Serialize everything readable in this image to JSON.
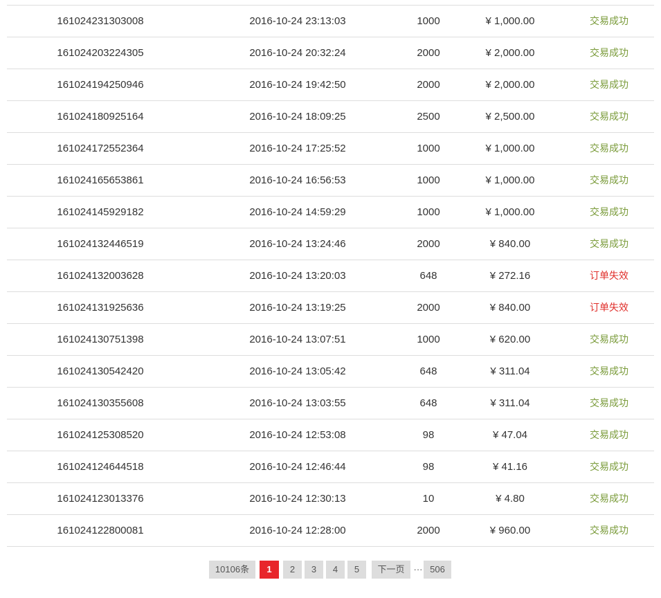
{
  "orders": [
    {
      "id": "161024231303008",
      "time": "2016-10-24 23:13:03",
      "qty": "1000",
      "amount": "¥ 1,000.00",
      "status": "交易成功",
      "status_type": "success"
    },
    {
      "id": "161024203224305",
      "time": "2016-10-24 20:32:24",
      "qty": "2000",
      "amount": "¥ 2,000.00",
      "status": "交易成功",
      "status_type": "success"
    },
    {
      "id": "161024194250946",
      "time": "2016-10-24 19:42:50",
      "qty": "2000",
      "amount": "¥ 2,000.00",
      "status": "交易成功",
      "status_type": "success"
    },
    {
      "id": "161024180925164",
      "time": "2016-10-24 18:09:25",
      "qty": "2500",
      "amount": "¥ 2,500.00",
      "status": "交易成功",
      "status_type": "success"
    },
    {
      "id": "161024172552364",
      "time": "2016-10-24 17:25:52",
      "qty": "1000",
      "amount": "¥ 1,000.00",
      "status": "交易成功",
      "status_type": "success"
    },
    {
      "id": "161024165653861",
      "time": "2016-10-24 16:56:53",
      "qty": "1000",
      "amount": "¥ 1,000.00",
      "status": "交易成功",
      "status_type": "success"
    },
    {
      "id": "161024145929182",
      "time": "2016-10-24 14:59:29",
      "qty": "1000",
      "amount": "¥ 1,000.00",
      "status": "交易成功",
      "status_type": "success"
    },
    {
      "id": "161024132446519",
      "time": "2016-10-24 13:24:46",
      "qty": "2000",
      "amount": "¥ 840.00",
      "status": "交易成功",
      "status_type": "success"
    },
    {
      "id": "161024132003628",
      "time": "2016-10-24 13:20:03",
      "qty": "648",
      "amount": "¥ 272.16",
      "status": "订单失效",
      "status_type": "failed"
    },
    {
      "id": "161024131925636",
      "time": "2016-10-24 13:19:25",
      "qty": "2000",
      "amount": "¥ 840.00",
      "status": "订单失效",
      "status_type": "failed"
    },
    {
      "id": "161024130751398",
      "time": "2016-10-24 13:07:51",
      "qty": "1000",
      "amount": "¥ 620.00",
      "status": "交易成功",
      "status_type": "success"
    },
    {
      "id": "161024130542420",
      "time": "2016-10-24 13:05:42",
      "qty": "648",
      "amount": "¥ 311.04",
      "status": "交易成功",
      "status_type": "success"
    },
    {
      "id": "161024130355608",
      "time": "2016-10-24 13:03:55",
      "qty": "648",
      "amount": "¥ 311.04",
      "status": "交易成功",
      "status_type": "success"
    },
    {
      "id": "161024125308520",
      "time": "2016-10-24 12:53:08",
      "qty": "98",
      "amount": "¥ 47.04",
      "status": "交易成功",
      "status_type": "success"
    },
    {
      "id": "161024124644518",
      "time": "2016-10-24 12:46:44",
      "qty": "98",
      "amount": "¥ 41.16",
      "status": "交易成功",
      "status_type": "success"
    },
    {
      "id": "161024123013376",
      "time": "2016-10-24 12:30:13",
      "qty": "10",
      "amount": "¥ 4.80",
      "status": "交易成功",
      "status_type": "success"
    },
    {
      "id": "161024122800081",
      "time": "2016-10-24 12:28:00",
      "qty": "2000",
      "amount": "¥ 960.00",
      "status": "交易成功",
      "status_type": "success"
    }
  ],
  "pagination": {
    "total": "10106条",
    "pages": [
      "1",
      "2",
      "3",
      "4",
      "5"
    ],
    "current": "1",
    "next": "下一页",
    "ellipsis": "···",
    "last": "506"
  },
  "colors": {
    "success": "#7a9b3a",
    "failed": "#e0302c",
    "current_page": "#e8262b",
    "page_button": "#dddddd",
    "row_border": "#dddddd"
  }
}
